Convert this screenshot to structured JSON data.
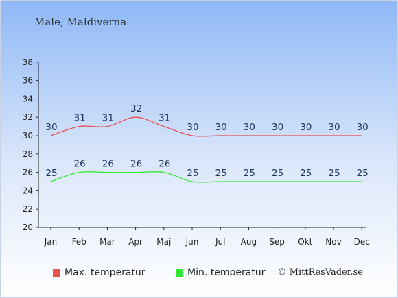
{
  "page": {
    "title": "Male, Maldiverna",
    "copyright": "© MittResVader.se"
  },
  "chart_data": {
    "type": "line",
    "categories": [
      "Jan",
      "Feb",
      "Mar",
      "Apr",
      "Maj",
      "Jun",
      "Jul",
      "Aug",
      "Sep",
      "Okt",
      "Nov",
      "Dec"
    ],
    "ylim": [
      20,
      38
    ],
    "yticks": [
      20,
      22,
      24,
      26,
      28,
      30,
      32,
      34,
      36,
      38
    ],
    "series": [
      {
        "name": "Max. temperatur",
        "color": "#e85050",
        "values": [
          30,
          31,
          31,
          32,
          31,
          30,
          30,
          30,
          30,
          30,
          30,
          30
        ]
      },
      {
        "name": "Min. temperatur",
        "color": "#33e833",
        "values": [
          25,
          26,
          26,
          26,
          26,
          25,
          25,
          25,
          25,
          25,
          25,
          25
        ]
      }
    ],
    "legend": "bottom-left",
    "grid": false
  }
}
